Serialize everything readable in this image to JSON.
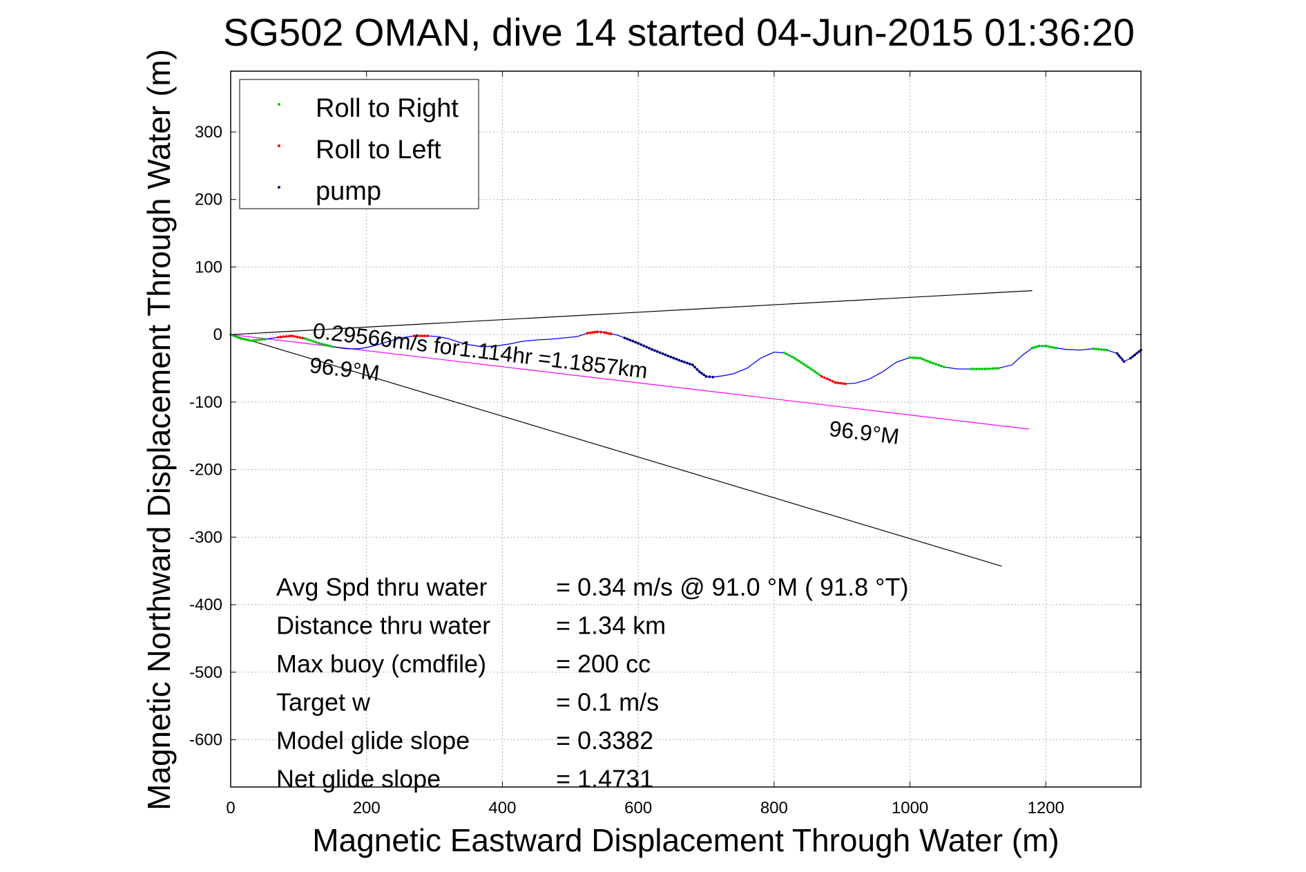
{
  "chart_data": {
    "type": "scatter",
    "title": "SG502 OMAN, dive 14 started 04-Jun-2015 01:36:20",
    "xlabel": "Magnetic Eastward Displacement Through Water (m)",
    "ylabel": "Magnetic Northward Displacement Through Water (m)",
    "xlim": [
      0,
      1340
    ],
    "ylim": [
      -670,
      390
    ],
    "grid": true,
    "legend_position": "top-left",
    "xticks": [
      "0",
      "200",
      "400",
      "600",
      "800",
      "1000",
      "1200"
    ],
    "yticks": [
      "300",
      "200",
      "100",
      "0",
      "-100",
      "-200",
      "-300",
      "-400",
      "-500",
      "-600"
    ],
    "legend": [
      {
        "label": "Roll to Right",
        "color": "#00cc00"
      },
      {
        "label": "Roll to Left",
        "color": "#ff0000"
      },
      {
        "label": "pump",
        "color": "#000080"
      }
    ],
    "colors": {
      "track": "#0000ff",
      "mean_line": "#ff00ff",
      "bearing_lines": "#000000"
    },
    "track": {
      "x": [
        0,
        15,
        30,
        50,
        70,
        90,
        110,
        130,
        150,
        170,
        190,
        210,
        230,
        250,
        270,
        290,
        305,
        320,
        335,
        350,
        370,
        390,
        410,
        430,
        450,
        470,
        490,
        510,
        525,
        540,
        550,
        560,
        570,
        580,
        600,
        620,
        640,
        660,
        680,
        690,
        700,
        710,
        725,
        740,
        760,
        780,
        800,
        815,
        830,
        850,
        870,
        890,
        905,
        920,
        940,
        960,
        980,
        1000,
        1015,
        1030,
        1050,
        1070,
        1090,
        1110,
        1130,
        1150,
        1165,
        1180,
        1190,
        1200,
        1215,
        1230,
        1250,
        1270,
        1290,
        1305,
        1315,
        1325,
        1340
      ],
      "y": [
        0,
        -6,
        -9,
        -7,
        -4,
        -2,
        -6,
        -13,
        -18,
        -21,
        -21,
        -17,
        -11,
        -5,
        -2,
        -2,
        -3,
        -6,
        -11,
        -15,
        -18,
        -17,
        -14,
        -10,
        -8,
        -7,
        -5,
        -3,
        2,
        4,
        3,
        1,
        -1,
        -5,
        -13,
        -22,
        -30,
        -38,
        -45,
        -55,
        -62,
        -63,
        -61,
        -58,
        -50,
        -35,
        -26,
        -27,
        -35,
        -48,
        -62,
        -71,
        -73,
        -72,
        -66,
        -55,
        -41,
        -34,
        -35,
        -41,
        -48,
        -51,
        -51,
        -51,
        -50,
        -45,
        -31,
        -20,
        -17,
        -17,
        -20,
        -22,
        -23,
        -21,
        -23,
        -28,
        -40,
        -35,
        -23
      ]
    },
    "segments": [
      {
        "name": "Roll to Right",
        "from": 0,
        "to": 3,
        "color": "#00cc00"
      },
      {
        "name": "Roll to Left",
        "from": 4,
        "to": 6,
        "color": "#ff0000"
      },
      {
        "name": "Roll to Right",
        "from": 6,
        "to": 8,
        "color": "#00cc00"
      },
      {
        "name": "Roll to Left",
        "from": 14,
        "to": 15,
        "color": "#ff0000"
      },
      {
        "name": "Roll to Left",
        "from": 28,
        "to": 31,
        "color": "#ff0000"
      },
      {
        "name": "pump",
        "from": 33,
        "to": 41,
        "color": "#000080"
      },
      {
        "name": "Roll to Right",
        "from": 47,
        "to": 50,
        "color": "#00cc00"
      },
      {
        "name": "Roll to Left",
        "from": 50,
        "to": 52,
        "color": "#ff0000"
      },
      {
        "name": "Roll to Right",
        "from": 57,
        "to": 60,
        "color": "#00cc00"
      },
      {
        "name": "Roll to Right",
        "from": 62,
        "to": 64,
        "color": "#00cc00"
      },
      {
        "name": "Roll to Right",
        "from": 67,
        "to": 70,
        "color": "#00cc00"
      },
      {
        "name": "Roll to Right",
        "from": 73,
        "to": 74,
        "color": "#00cc00"
      },
      {
        "name": "pump",
        "from": 75,
        "to": 76,
        "color": "#000080"
      },
      {
        "name": "pump",
        "from": 77,
        "to": 78,
        "color": "#000080"
      }
    ],
    "lines": [
      {
        "name": "bearing-upper",
        "x": [
          0,
          1180
        ],
        "y": [
          0,
          65
        ],
        "color": "#000000"
      },
      {
        "name": "bearing-lower",
        "x": [
          0,
          1135
        ],
        "y": [
          0,
          -343
        ],
        "color": "#000000"
      },
      {
        "name": "mean-heading",
        "x": [
          0,
          1175
        ],
        "y": [
          0,
          -140
        ],
        "color": "#ff00ff"
      }
    ],
    "annotations": [
      {
        "text": "0.29566m/s for1.114hr =1.1857km",
        "x": 120,
        "y": -5,
        "rotate": 6.9
      },
      {
        "text": "96.9°M",
        "x": 115,
        "y": -56,
        "rotate": 6.9
      },
      {
        "text": "96.9°M",
        "x": 880,
        "y": -150,
        "rotate": 6.9
      }
    ],
    "stats": [
      {
        "label": "Avg Spd thru water",
        "value": "=  0.34 m/s @  91.0 °M ( 91.8 °T)"
      },
      {
        "label": "Distance thru water",
        "value": "=  1.34 km"
      },
      {
        "label": "Max buoy (cmdfile)",
        "value": "= 200 cc"
      },
      {
        "label": "Target w",
        "value": "= 0.1 m/s"
      },
      {
        "label": "Model glide slope",
        "value": "= 0.3382"
      },
      {
        "label": "Net glide slope",
        "value": "= 1.4731"
      }
    ]
  }
}
